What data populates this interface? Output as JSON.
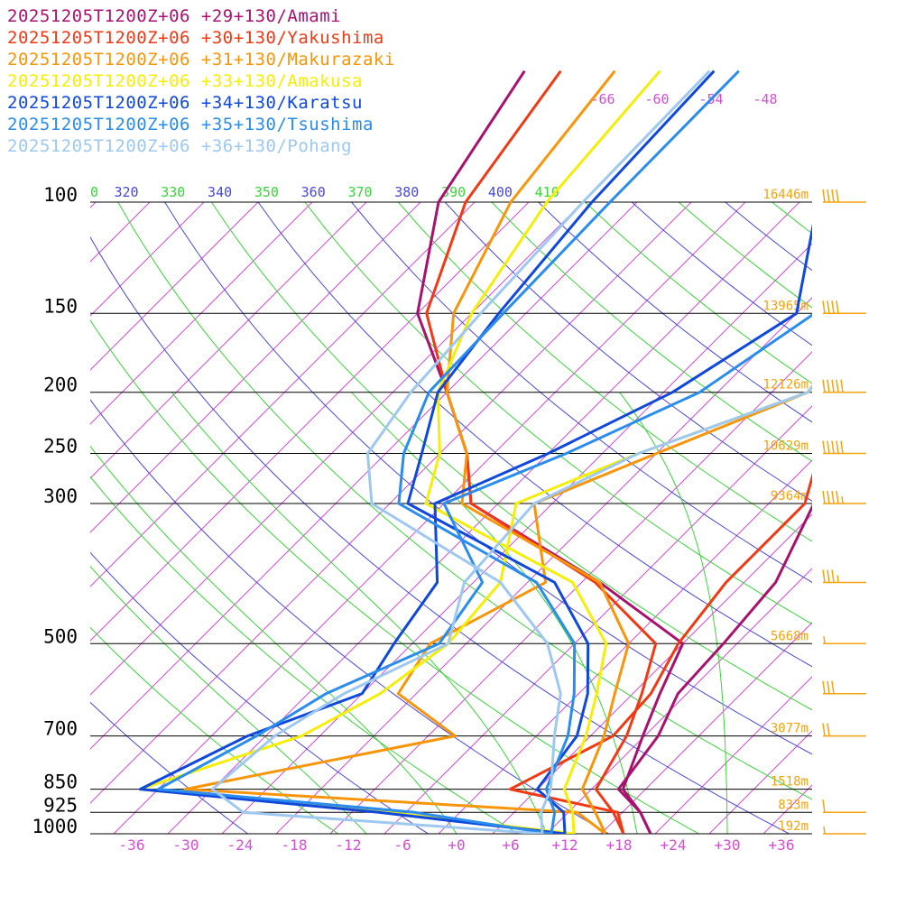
{
  "chart_data": {
    "type": "line",
    "title": "",
    "x_axis": {
      "label": "",
      "range": [
        -40,
        40
      ],
      "ticks": [
        "-36",
        "-30",
        "-24",
        "-18",
        "-12",
        "-6",
        "+0",
        "+6",
        "+12",
        "+18",
        "+24",
        "+30",
        "+36"
      ]
    },
    "y_axis": {
      "label": "",
      "scale": "log",
      "ticks": [
        100,
        150,
        200,
        250,
        300,
        500,
        700,
        850,
        925,
        1000
      ]
    },
    "grid": true,
    "legend_position": "top-left",
    "heights": [
      {
        "p": 100,
        "label": "16446m"
      },
      {
        "p": 150,
        "label": "13965m"
      },
      {
        "p": 200,
        "label": "12126m"
      },
      {
        "p": 250,
        "label": "10629m"
      },
      {
        "p": 300,
        "label": "9364m"
      },
      {
        "p": 500,
        "label": "5668m"
      },
      {
        "p": 700,
        "label": "3077m"
      },
      {
        "p": 850,
        "label": "1518m"
      },
      {
        "p": 925,
        "label": "833m"
      },
      {
        "p": 1000,
        "label": "192m"
      }
    ],
    "adiabat_labels": [
      {
        "text": "0",
        "color": "#3ad43a"
      },
      {
        "text": "320",
        "color": "#4848dc"
      },
      {
        "text": "330",
        "color": "#3ad43a"
      },
      {
        "text": "340",
        "color": "#4848dc"
      },
      {
        "text": "350",
        "color": "#3ad43a"
      },
      {
        "text": "360",
        "color": "#4848dc"
      },
      {
        "text": "370",
        "color": "#3ad43a"
      },
      {
        "text": "380",
        "color": "#4848dc"
      },
      {
        "text": "390",
        "color": "#3ad43a"
      },
      {
        "text": "400",
        "color": "#4848dc"
      },
      {
        "text": "410",
        "color": "#3ad43a"
      }
    ],
    "upper_temp_labels": [
      "-66",
      "-60",
      "-54",
      "-48"
    ],
    "series": [
      {
        "name": "20251205T1200Z+06 +29+130/Amami",
        "color": "#a8126e",
        "temp": [
          [
            1000,
            21.5
          ],
          [
            925,
            18
          ],
          [
            850,
            13.5
          ],
          [
            700,
            9.8
          ],
          [
            600,
            7
          ],
          [
            500,
            4
          ],
          [
            400,
            -12
          ],
          [
            300,
            -35
          ],
          [
            250,
            -41
          ],
          [
            200,
            -50
          ],
          [
            150,
            -62
          ],
          [
            100,
            -72
          ]
        ],
        "dew": [
          [
            1000,
            21.5
          ],
          [
            925,
            18
          ],
          [
            850,
            13
          ],
          [
            700,
            11.5
          ],
          [
            600,
            9
          ],
          [
            500,
            8.5
          ],
          [
            400,
            7.5
          ],
          [
            300,
            3
          ],
          [
            250,
            -2
          ],
          [
            200,
            -8
          ],
          [
            150,
            -15
          ],
          [
            100,
            -24
          ]
        ]
      },
      {
        "name": "20251205T1200Z+06 +30+130/Yakushima",
        "color": "#f03a15",
        "temp": [
          [
            1000,
            18.5
          ],
          [
            925,
            15
          ],
          [
            850,
            10.5
          ],
          [
            700,
            8
          ],
          [
            600,
            5
          ],
          [
            500,
            1
          ],
          [
            400,
            -12.5
          ],
          [
            300,
            -35
          ],
          [
            250,
            -41
          ],
          [
            200,
            -50
          ],
          [
            150,
            -61
          ],
          [
            100,
            -69
          ]
        ],
        "dew": [
          [
            1000,
            18.5
          ],
          [
            925,
            15.5
          ],
          [
            850,
            1
          ],
          [
            700,
            6.5
          ],
          [
            600,
            6
          ],
          [
            500,
            3.5
          ],
          [
            400,
            2
          ],
          [
            300,
            2
          ],
          [
            250,
            -2
          ],
          [
            200,
            -8
          ],
          [
            150,
            -15
          ],
          [
            100,
            -25
          ]
        ]
      },
      {
        "name": "20251205T1200Z+06 +31+130/Makurazaki",
        "color": "#f7950b",
        "temp": [
          [
            1000,
            16.5
          ],
          [
            925,
            13
          ],
          [
            850,
            9
          ],
          [
            700,
            5.5
          ],
          [
            600,
            2
          ],
          [
            500,
            -2
          ],
          [
            400,
            -12
          ],
          [
            300,
            -36
          ],
          [
            250,
            -41
          ],
          [
            200,
            -50
          ],
          [
            150,
            -58
          ],
          [
            100,
            -64
          ]
        ],
        "dew": [
          [
            1000,
            16.5
          ],
          [
            925,
            11
          ],
          [
            850,
            -35
          ],
          [
            700,
            -11
          ],
          [
            600,
            -22
          ],
          [
            500,
            -24
          ],
          [
            400,
            -18
          ],
          [
            300,
            -28
          ],
          [
            250,
            -20
          ],
          [
            200,
            -10
          ],
          [
            150,
            -12
          ],
          [
            100,
            -20
          ]
        ]
      },
      {
        "name": "20251205T1200Z+06 +33+130/Amakusa",
        "color": "#f4ee08",
        "temp": [
          [
            1000,
            13
          ],
          [
            925,
            10.5
          ],
          [
            850,
            7
          ],
          [
            700,
            3.5
          ],
          [
            600,
            0
          ],
          [
            500,
            -4.5
          ],
          [
            400,
            -15
          ],
          [
            300,
            -40
          ],
          [
            250,
            -44
          ],
          [
            200,
            -51
          ],
          [
            150,
            -56
          ],
          [
            100,
            -60
          ]
        ],
        "dew": [
          [
            1000,
            13
          ],
          [
            925,
            -10
          ],
          [
            850,
            -40
          ],
          [
            700,
            -28
          ],
          [
            600,
            -24
          ],
          [
            500,
            -22
          ],
          [
            400,
            -23
          ],
          [
            300,
            -30
          ],
          [
            250,
            -22
          ],
          [
            200,
            -10
          ],
          [
            150,
            -10
          ],
          [
            100,
            -18
          ]
        ]
      },
      {
        "name": "20251205T1200Z+06 +34+130/Karatsu",
        "color": "#1048dc",
        "temp": [
          [
            1000,
            12
          ],
          [
            925,
            9.5
          ],
          [
            850,
            4
          ],
          [
            700,
            2.5
          ],
          [
            600,
            -1
          ],
          [
            500,
            -6.5
          ],
          [
            400,
            -17
          ],
          [
            300,
            -42
          ],
          [
            250,
            -46
          ],
          [
            200,
            -51
          ],
          [
            150,
            -53
          ],
          [
            100,
            -55
          ]
        ],
        "dew": [
          [
            1000,
            12
          ],
          [
            925,
            -11
          ],
          [
            850,
            -40
          ],
          [
            700,
            -34
          ],
          [
            600,
            -26
          ],
          [
            500,
            -28
          ],
          [
            400,
            -30
          ],
          [
            300,
            -39
          ],
          [
            250,
            -32
          ],
          [
            200,
            -25
          ],
          [
            150,
            -20
          ],
          [
            100,
            -30
          ]
        ]
      },
      {
        "name": "20251205T1200Z+06 +35+130/Tsushima",
        "color": "#2a8cec",
        "temp": [
          [
            1000,
            10.5
          ],
          [
            925,
            8.5
          ],
          [
            850,
            5
          ],
          [
            700,
            1.5
          ],
          [
            600,
            -2.5
          ],
          [
            500,
            -8
          ],
          [
            400,
            -19
          ],
          [
            300,
            -43
          ],
          [
            250,
            -48
          ],
          [
            200,
            -52
          ],
          [
            150,
            -52.5
          ],
          [
            100,
            -53
          ]
        ],
        "dew": [
          [
            1000,
            10.5
          ],
          [
            925,
            -7
          ],
          [
            850,
            -38
          ],
          [
            700,
            -33
          ],
          [
            600,
            -30
          ],
          [
            500,
            -23
          ],
          [
            400,
            -25
          ],
          [
            300,
            -38
          ],
          [
            250,
            -30
          ],
          [
            200,
            -22
          ],
          [
            150,
            -18
          ],
          [
            100,
            -25
          ]
        ]
      },
      {
        "name": "20251205T1200Z+06 +36+130/Pohang",
        "color": "#9ec8f0",
        "temp": [
          [
            1000,
            9.5
          ],
          [
            925,
            7
          ],
          [
            850,
            5.5
          ],
          [
            700,
            0
          ],
          [
            600,
            -4
          ],
          [
            500,
            -11
          ],
          [
            400,
            -23
          ],
          [
            300,
            -46
          ],
          [
            250,
            -52
          ],
          [
            200,
            -54
          ],
          [
            150,
            -55
          ],
          [
            100,
            -56
          ]
        ],
        "dew": [
          [
            1000,
            9.5
          ],
          [
            925,
            -26
          ],
          [
            850,
            -32
          ],
          [
            700,
            -31
          ],
          [
            600,
            -28
          ],
          [
            500,
            -22
          ],
          [
            400,
            -27
          ],
          [
            300,
            -28
          ],
          [
            250,
            -22
          ],
          [
            200,
            -10
          ],
          [
            150,
            -12
          ],
          [
            100,
            -22
          ]
        ]
      }
    ],
    "wind_barbs": [
      {
        "p": 1000,
        "speed_kt": 5
      },
      {
        "p": 925,
        "speed_kt": 10
      },
      {
        "p": 700,
        "speed_kt": 20
      },
      {
        "p": 600,
        "speed_kt": 30
      },
      {
        "p": 500,
        "speed_kt": 5
      },
      {
        "p": 400,
        "speed_kt": 35
      },
      {
        "p": 300,
        "speed_kt": 45
      },
      {
        "p": 250,
        "speed_kt": 50
      },
      {
        "p": 200,
        "speed_kt": 50
      },
      {
        "p": 150,
        "speed_kt": 40
      },
      {
        "p": 100,
        "speed_kt": 40
      }
    ]
  },
  "colors": {
    "isobar": "#000000",
    "isotherm": "#d34fd3",
    "dry_adiabat": "#4848dc",
    "moist_adiabat": "#3ad43a",
    "height_label": "#f4a30f",
    "wind_barb": "#f4a30f"
  }
}
